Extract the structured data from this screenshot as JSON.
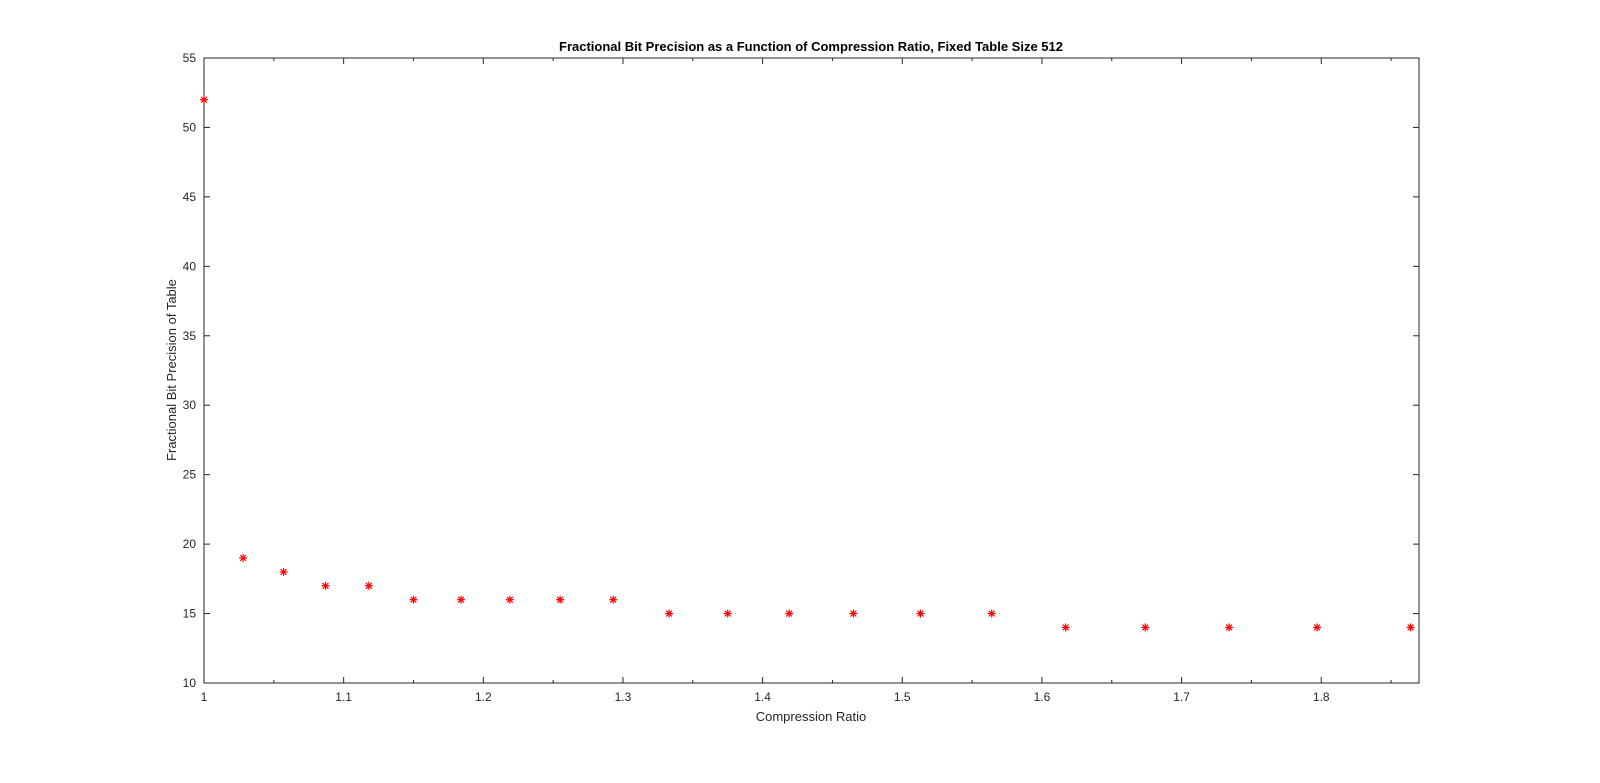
{
  "chart_data": {
    "type": "scatter",
    "title": "Fractional Bit Precision as a Function of Compression Ratio, Fixed Table Size 512",
    "xlabel": "Compression Ratio",
    "ylabel": "Fractional Bit Precision of Table",
    "xlim": [
      1,
      1.87
    ],
    "ylim": [
      10,
      55
    ],
    "xticks": [
      1,
      1.1,
      1.2,
      1.3,
      1.4,
      1.5,
      1.6,
      1.7,
      1.8
    ],
    "xtick_labels": [
      "1",
      "1.1",
      "1.2",
      "1.3",
      "1.4",
      "1.5",
      "1.6",
      "1.7",
      "1.8"
    ],
    "yticks": [
      10,
      15,
      20,
      25,
      30,
      35,
      40,
      45,
      50,
      55
    ],
    "ytick_labels": [
      "10",
      "15",
      "20",
      "25",
      "30",
      "35",
      "40",
      "45",
      "50",
      "55"
    ],
    "grid": false,
    "marker": "asterisk",
    "marker_color": "#ff0000",
    "points": [
      {
        "x": 1.0,
        "y": 52
      },
      {
        "x": 1.028,
        "y": 19
      },
      {
        "x": 1.057,
        "y": 18
      },
      {
        "x": 1.087,
        "y": 17
      },
      {
        "x": 1.118,
        "y": 17
      },
      {
        "x": 1.15,
        "y": 16
      },
      {
        "x": 1.184,
        "y": 16
      },
      {
        "x": 1.219,
        "y": 16
      },
      {
        "x": 1.255,
        "y": 16
      },
      {
        "x": 1.293,
        "y": 16
      },
      {
        "x": 1.333,
        "y": 15
      },
      {
        "x": 1.375,
        "y": 15
      },
      {
        "x": 1.419,
        "y": 15
      },
      {
        "x": 1.465,
        "y": 15
      },
      {
        "x": 1.513,
        "y": 15
      },
      {
        "x": 1.564,
        "y": 15
      },
      {
        "x": 1.617,
        "y": 14
      },
      {
        "x": 1.674,
        "y": 14
      },
      {
        "x": 1.734,
        "y": 14
      },
      {
        "x": 1.797,
        "y": 14
      },
      {
        "x": 1.864,
        "y": 14
      }
    ]
  }
}
